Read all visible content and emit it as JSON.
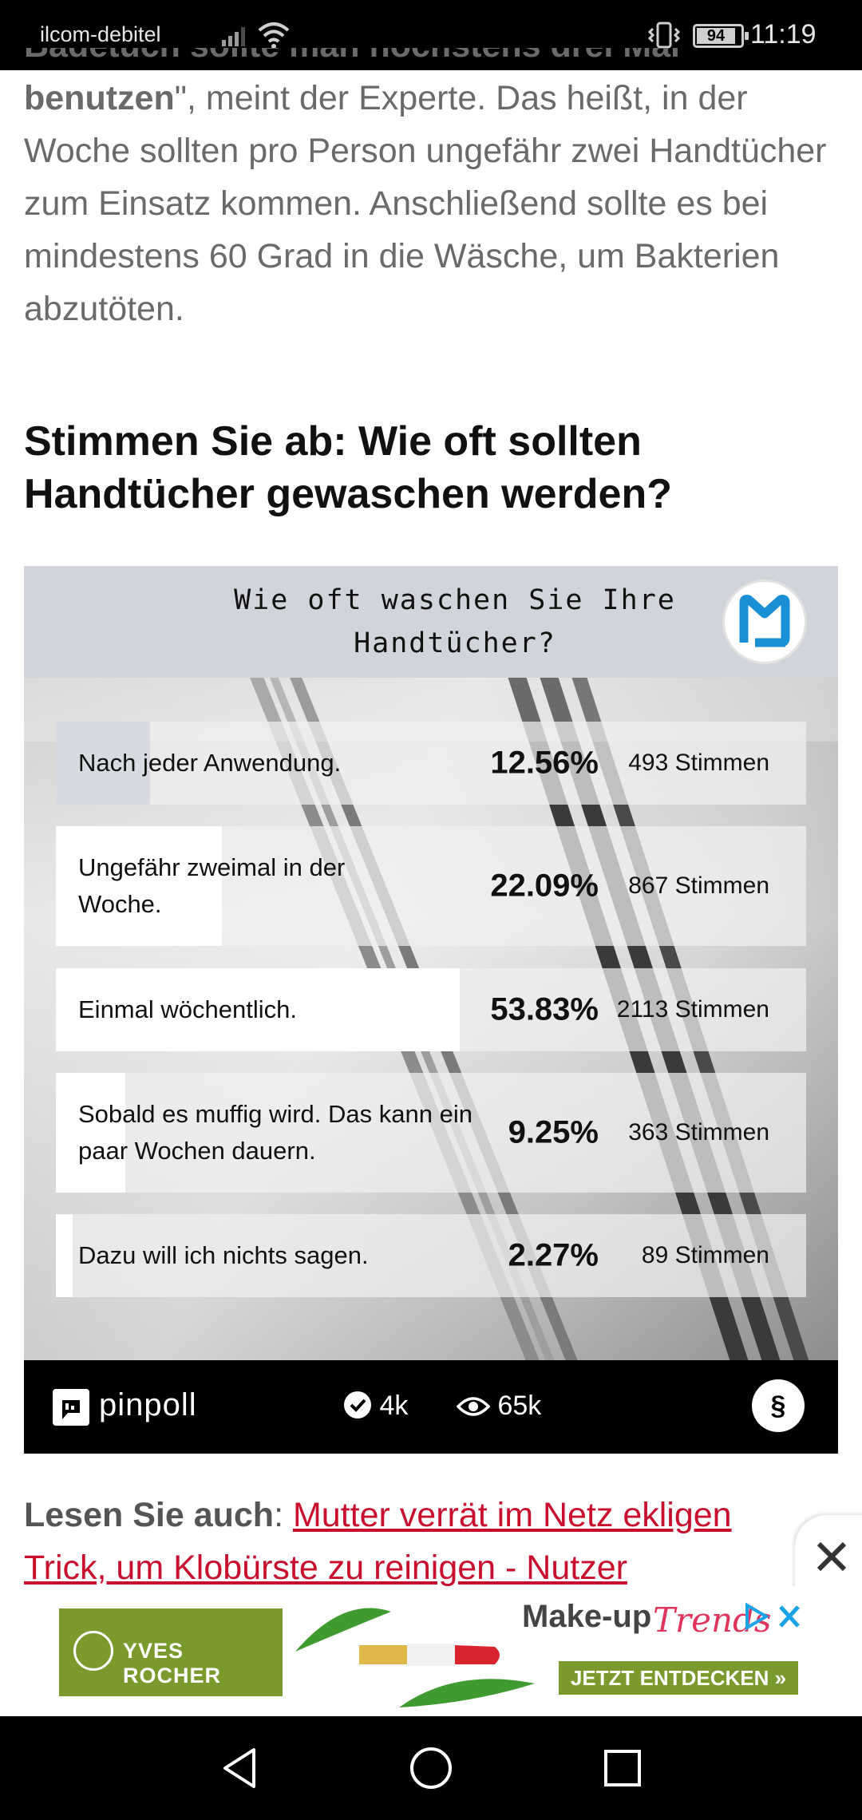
{
  "status_bar": {
    "carrier": "ilcom-debitel",
    "battery": "94",
    "time": "11:19"
  },
  "article": {
    "line0": "Badetuch sollte man höchstens drei Mal",
    "bold_tail": "benutzen",
    "text_after_bold": "\", meint der Experte. Das heißt, in der Woche sollten pro Person ungefähr zwei Handtücher zum Einsatz kommen. Anschließend sollte es bei mindestens 60 Grad in die Wäsche, um Bakterien abzutöten."
  },
  "poll_heading": "Stimmen Sie ab: Wie oft sollten Handtücher gewaschen werden?",
  "poll": {
    "question": "Wie oft waschen Sie Ihre Handtücher?",
    "options": [
      {
        "label": "Nach jeder Anwendung.",
        "percent_text": "12.56%",
        "votes_text": "493 Stimmen",
        "percent": 12.56
      },
      {
        "label": "Ungefähr zweimal in der Woche.",
        "percent_text": "22.09%",
        "votes_text": "867 Stimmen",
        "percent": 22.09
      },
      {
        "label": "Einmal wöchentlich.",
        "percent_text": "53.83%",
        "votes_text": "2113 Stimmen",
        "percent": 53.83
      },
      {
        "label": "Sobald es muffig wird. Das kann ein paar Wochen dauern.",
        "percent_text": "9.25%",
        "votes_text": "363 Stimmen",
        "percent": 9.25
      },
      {
        "label": "Dazu will ich nichts sagen.",
        "percent_text": "2.27%",
        "votes_text": "89 Stimmen",
        "percent": 2.27
      }
    ],
    "footer": {
      "brand": "pinpoll",
      "votes_count": "4k",
      "views_count": "65k",
      "shield_label": "§"
    }
  },
  "lesen": {
    "label": "Lesen Sie auch",
    "separator": ":",
    "link_text": "Mutter verrät im Netz ekligen Trick, um Klobürste zu reinigen - Nutzer"
  },
  "ad": {
    "brand": "YVES ROCHER",
    "headline": "Make-up",
    "headline_script": "Trends",
    "cta": "JETZT ENTDECKEN »",
    "accent_color": "#7b9a2e"
  },
  "colors": {
    "link": "#c8102e",
    "poll_header_bg": "#d1d4da"
  }
}
